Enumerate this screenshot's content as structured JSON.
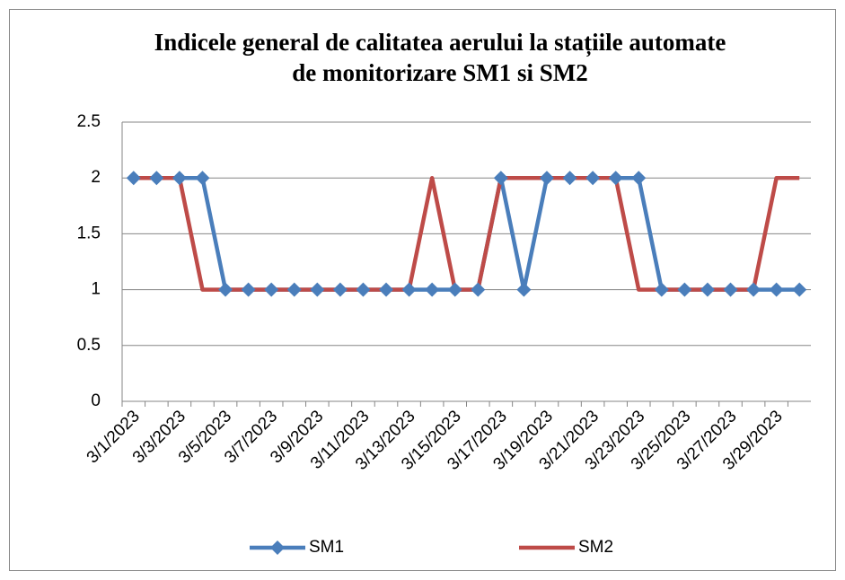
{
  "chart_data": {
    "type": "line",
    "title": "Indicele general de calitatea aerului la stațiile automate de monitorizare SM1 si SM2",
    "categories": [
      "3/1/2023",
      null,
      "3/3/2023",
      null,
      "3/5/2023",
      null,
      "3/7/2023",
      null,
      "3/9/2023",
      null,
      "3/11/2023",
      null,
      "3/13/2023",
      null,
      "3/15/2023",
      null,
      "3/17/2023",
      null,
      "3/19/2023",
      null,
      "3/21/2023",
      null,
      "3/23/2023",
      null,
      "3/25/2023",
      null,
      "3/27/2023",
      null,
      "3/29/2023",
      null
    ],
    "series": [
      {
        "name": "SM1",
        "color": "#4a7ebb",
        "marker": "diamond",
        "values": [
          2,
          2,
          2,
          2,
          1,
          1,
          1,
          1,
          1,
          1,
          1,
          1,
          1,
          1,
          1,
          1,
          2,
          1,
          2,
          2,
          2,
          2,
          2,
          1,
          1,
          1,
          1,
          1,
          1,
          1
        ]
      },
      {
        "name": "SM2",
        "color": "#be4b48",
        "values": [
          2,
          2,
          2,
          1,
          1,
          1,
          1,
          1,
          1,
          1,
          1,
          1,
          1,
          2,
          1,
          1,
          2,
          2,
          2,
          2,
          2,
          2,
          1,
          1,
          1,
          1,
          1,
          1,
          2,
          2
        ]
      }
    ],
    "ylim": [
      0,
      2.5
    ],
    "yticks": [
      0,
      0.5,
      1,
      1.5,
      2,
      2.5
    ],
    "grid": true,
    "legend": "bottom"
  }
}
